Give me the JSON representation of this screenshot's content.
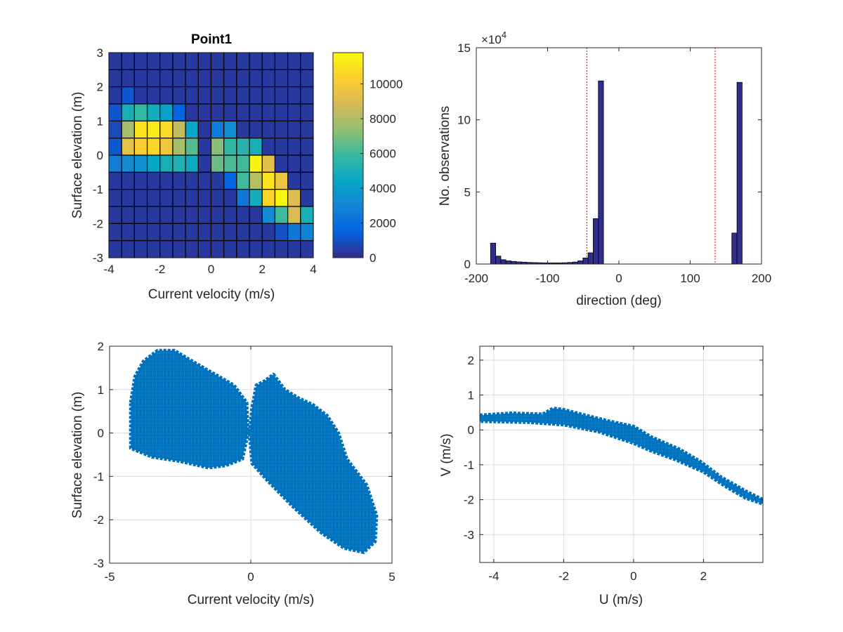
{
  "figure": {
    "background": "#ffffff"
  },
  "chart_data": [
    {
      "type": "heatmap",
      "title": "Point1",
      "xlabel": "Current velocity (m/s)",
      "ylabel": "Surface elevation (m)",
      "xlim": [
        -4,
        4
      ],
      "ylim": [
        -3,
        3
      ],
      "x_ticks": [
        "-4",
        "-2",
        "0",
        "2",
        "4"
      ],
      "y_ticks": [
        "-3",
        "-2",
        "-1",
        "0",
        "1",
        "2",
        "3"
      ],
      "x_bin_edges": [
        -4,
        -3.5,
        -3,
        -2.5,
        -2,
        -1.5,
        -1,
        -0.5,
        0,
        0.5,
        1,
        1.5,
        2,
        2.5,
        3,
        3.5,
        4
      ],
      "y_bin_edges": [
        -3,
        -2.5,
        -2,
        -1.5,
        -1,
        -0.5,
        0,
        0.5,
        1,
        1.5,
        2,
        2.5,
        3
      ],
      "z_rows_top_to_bottom": [
        [
          400,
          400,
          400,
          400,
          400,
          400,
          400,
          400,
          400,
          400,
          400,
          400,
          400,
          400,
          400,
          400
        ],
        [
          400,
          400,
          400,
          400,
          400,
          400,
          400,
          400,
          400,
          400,
          400,
          400,
          400,
          400,
          400,
          400
        ],
        [
          400,
          1200,
          400,
          400,
          400,
          400,
          400,
          400,
          400,
          400,
          400,
          400,
          400,
          400,
          400,
          400
        ],
        [
          1200,
          5000,
          5800,
          4800,
          4200,
          1500,
          400,
          400,
          400,
          400,
          400,
          400,
          400,
          400,
          400,
          400
        ],
        [
          800,
          7800,
          11000,
          11200,
          10800,
          8400,
          4400,
          400,
          2500,
          3300,
          400,
          400,
          400,
          400,
          400,
          400
        ],
        [
          1200,
          9400,
          10200,
          10600,
          9800,
          7800,
          6400,
          400,
          7200,
          5700,
          5400,
          5000,
          400,
          400,
          400,
          400
        ],
        [
          2600,
          3200,
          3400,
          4400,
          5000,
          5200,
          4600,
          400,
          6700,
          6200,
          6000,
          11500,
          9300,
          400,
          400,
          400
        ],
        [
          400,
          400,
          400,
          400,
          400,
          400,
          400,
          400,
          400,
          1500,
          6000,
          8100,
          11000,
          9600,
          400,
          400
        ],
        [
          400,
          400,
          400,
          400,
          400,
          400,
          400,
          400,
          400,
          400,
          2400,
          4800,
          10600,
          11600,
          9000,
          400
        ],
        [
          400,
          400,
          400,
          400,
          400,
          400,
          400,
          400,
          400,
          400,
          400,
          400,
          3200,
          6000,
          8900,
          5000
        ],
        [
          400,
          400,
          400,
          400,
          400,
          400,
          400,
          400,
          400,
          400,
          400,
          400,
          400,
          1000,
          2400,
          2800
        ],
        [
          400,
          400,
          400,
          400,
          400,
          400,
          400,
          400,
          400,
          400,
          400,
          400,
          400,
          400,
          400,
          400
        ]
      ],
      "colorbar": {
        "range": [
          0,
          11800
        ],
        "ticks": [
          "0",
          "2000",
          "4000",
          "6000",
          "8000",
          "10000"
        ],
        "colormap": "parula"
      },
      "grid": false
    },
    {
      "type": "bar",
      "title": "",
      "xlabel": "direction (deg)",
      "ylabel": "No. observations",
      "exponent_label": "×10",
      "exponent_power": "4",
      "xlim": [
        -200,
        200
      ],
      "ylim": [
        0,
        150000
      ],
      "x_ticks": [
        "-200",
        "-100",
        "0",
        "100",
        "200"
      ],
      "y_ticks": [
        "0",
        "5",
        "10",
        "15"
      ],
      "bin_width": 7.2,
      "bin_centers": [
        -176.4,
        -169.2,
        -162,
        -154.8,
        -147.6,
        -140.4,
        -133.2,
        -126,
        -118.8,
        -111.6,
        -104.4,
        -97.2,
        -90,
        -82.8,
        -75.6,
        -68.4,
        -61.2,
        -54,
        -46.8,
        -39.6,
        -32.4,
        -25.2,
        162,
        169.2,
        176.4
      ],
      "values": [
        14500,
        5500,
        3000,
        2200,
        1800,
        1500,
        1300,
        1100,
        1000,
        900,
        800,
        800,
        800,
        800,
        900,
        1100,
        1400,
        2200,
        4200,
        7800,
        31500,
        127000,
        21500,
        126000,
        0
      ],
      "reference_lines": [
        -45,
        135
      ],
      "bar_color": "#2e2e8c",
      "reference_line_color": "#ff0000",
      "grid": false
    },
    {
      "type": "scatter",
      "title": "",
      "xlabel": "Current velocity (m/s)",
      "ylabel": "Surface elevation (m)",
      "xlim": [
        -5,
        5
      ],
      "ylim": [
        -3,
        2
      ],
      "x_ticks": [
        "-5",
        "0",
        "5"
      ],
      "y_ticks": [
        "-3",
        "-2",
        "-1",
        "0",
        "1",
        "2"
      ],
      "marker": "+",
      "color": "#0072bd",
      "grid": true,
      "point_clouds": [
        {
          "name": "",
          "outline": [
            [
              -4.25,
              0.7
            ],
            [
              -4.1,
              1.3
            ],
            [
              -3.8,
              1.65
            ],
            [
              -3.3,
              1.9
            ],
            [
              -2.7,
              1.9
            ],
            [
              -2.2,
              1.7
            ],
            [
              -1.4,
              1.4
            ],
            [
              -0.6,
              1.1
            ],
            [
              -0.15,
              0.7
            ],
            [
              -0.1,
              0.0
            ],
            [
              -0.3,
              -0.6
            ],
            [
              -0.9,
              -0.75
            ],
            [
              -1.5,
              -0.8
            ],
            [
              -2.5,
              -0.65
            ],
            [
              -3.5,
              -0.55
            ],
            [
              -4.25,
              -0.35
            ]
          ]
        },
        {
          "name": "",
          "outline": [
            [
              0.05,
              0.6
            ],
            [
              0.2,
              1.1
            ],
            [
              0.5,
              1.2
            ],
            [
              0.8,
              1.35
            ],
            [
              1.2,
              1.0
            ],
            [
              1.7,
              0.8
            ],
            [
              2.2,
              0.65
            ],
            [
              2.7,
              0.4
            ],
            [
              3.1,
              0.0
            ],
            [
              3.4,
              -0.6
            ],
            [
              4.1,
              -1.2
            ],
            [
              4.45,
              -1.9
            ],
            [
              4.4,
              -2.5
            ],
            [
              4.0,
              -2.75
            ],
            [
              3.3,
              -2.65
            ],
            [
              2.5,
              -2.3
            ],
            [
              1.5,
              -1.7
            ],
            [
              0.6,
              -1.1
            ],
            [
              0.05,
              -0.7
            ],
            [
              -0.05,
              0.0
            ]
          ]
        }
      ]
    },
    {
      "type": "scatter",
      "title": "",
      "xlabel": "U (m/s)",
      "ylabel": "V (m/s)",
      "xlim": [
        -4.4,
        3.7
      ],
      "ylim": [
        -3.8,
        2.4
      ],
      "x_ticks": [
        "-4",
        "-2",
        "0",
        "2"
      ],
      "y_ticks": [
        "-3",
        "-2",
        "-1",
        "0",
        "1",
        "2"
      ],
      "marker": "+",
      "color": "#0072bd",
      "grid": true,
      "point_clouds": [
        {
          "name": "",
          "outline": [
            [
              -4.4,
              0.42
            ],
            [
              -3.5,
              0.48
            ],
            [
              -2.6,
              0.45
            ],
            [
              -2.3,
              0.62
            ],
            [
              -2.0,
              0.58
            ],
            [
              -1.5,
              0.45
            ],
            [
              -0.7,
              0.25
            ],
            [
              0.0,
              0.1
            ],
            [
              0.5,
              -0.2
            ],
            [
              1.3,
              -0.55
            ],
            [
              1.9,
              -0.9
            ],
            [
              2.5,
              -1.35
            ],
            [
              3.2,
              -1.75
            ],
            [
              3.7,
              -2.0
            ],
            [
              3.7,
              -2.12
            ],
            [
              3.2,
              -1.95
            ],
            [
              2.6,
              -1.6
            ],
            [
              2.0,
              -1.2
            ],
            [
              1.2,
              -0.85
            ],
            [
              0.5,
              -0.6
            ],
            [
              0.0,
              -0.38
            ],
            [
              -1.0,
              -0.05
            ],
            [
              -2.0,
              0.15
            ],
            [
              -3.0,
              0.22
            ],
            [
              -4.4,
              0.25
            ]
          ]
        }
      ]
    }
  ]
}
